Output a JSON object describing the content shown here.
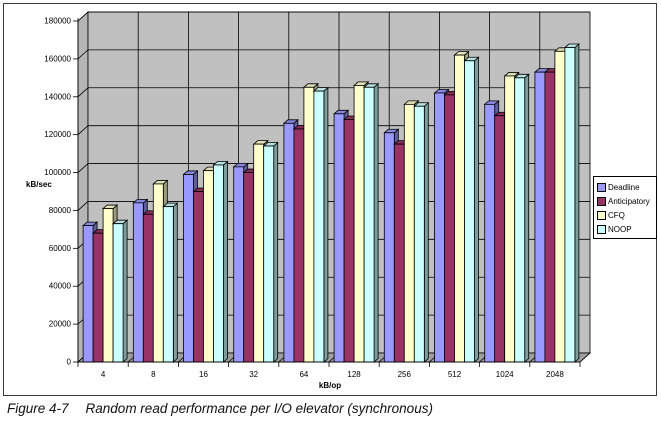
{
  "figure": {
    "caption_label": "Figure 4-7",
    "caption_text": "Random read performance per I/O elevator (synchronous)"
  },
  "chart_data": {
    "type": "bar",
    "style": "3d-clustered",
    "title": "",
    "xlabel": "kB/op",
    "ylabel": "kB/sec",
    "ylim": [
      0,
      180000
    ],
    "ytick_step": 20000,
    "yticks": [
      "0",
      "20000",
      "40000",
      "60000",
      "80000",
      "100000",
      "120000",
      "140000",
      "160000",
      "180000"
    ],
    "grid": true,
    "legend_position": "right",
    "plot_colors": {
      "back_wall": "#c0c0c0",
      "side_wall": "#b5b5b5",
      "floor": "#9e9e9e",
      "line": "#000000"
    },
    "categories": [
      "4",
      "8",
      "16",
      "32",
      "64",
      "128",
      "256",
      "512",
      "1024",
      "2048"
    ],
    "series": [
      {
        "name": "Deadline",
        "color": "#9999ff",
        "values": [
          72000,
          84000,
          99000,
          103000,
          126000,
          131000,
          121000,
          142000,
          136000,
          153000
        ]
      },
      {
        "name": "Anticipatory",
        "color": "#993366",
        "values": [
          68000,
          78000,
          90000,
          100000,
          123000,
          128000,
          115000,
          141000,
          130000,
          153000
        ]
      },
      {
        "name": "CFQ",
        "color": "#ffffcc",
        "values": [
          81000,
          94000,
          101000,
          115000,
          145000,
          146000,
          136000,
          162000,
          151000,
          164000
        ]
      },
      {
        "name": "NOOP",
        "color": "#ccffff",
        "values": [
          73000,
          82000,
          104000,
          114000,
          143000,
          145000,
          135000,
          159000,
          150000,
          166000
        ]
      }
    ]
  }
}
